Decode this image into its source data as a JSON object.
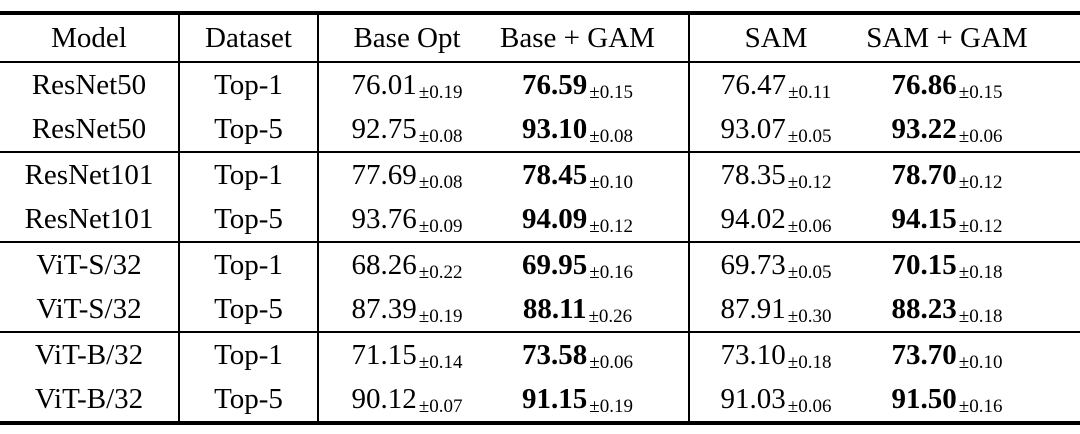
{
  "page": {
    "background": "#ffffff",
    "text_color": "#000000"
  },
  "table": {
    "headers": [
      "Model",
      "Dataset",
      "Base Opt",
      "Base + GAM",
      "SAM",
      "SAM + GAM"
    ],
    "groups": [
      {
        "rows": [
          {
            "model": "ResNet50",
            "dataset": "Top-1",
            "values": [
              {
                "v": "76.01",
                "pm": "±0.19"
              },
              {
                "v": "76.59",
                "pm": "±0.15"
              },
              {
                "v": "76.47",
                "pm": "±0.11"
              },
              {
                "v": "76.86",
                "pm": "±0.15"
              }
            ]
          },
          {
            "model": "ResNet50",
            "dataset": "Top-5",
            "values": [
              {
                "v": "92.75",
                "pm": "±0.08"
              },
              {
                "v": "93.10",
                "pm": "±0.08"
              },
              {
                "v": "93.07",
                "pm": "±0.05"
              },
              {
                "v": "93.22",
                "pm": "±0.06"
              }
            ]
          }
        ]
      },
      {
        "rows": [
          {
            "model": "ResNet101",
            "dataset": "Top-1",
            "values": [
              {
                "v": "77.69",
                "pm": "±0.08"
              },
              {
                "v": "78.45",
                "pm": "±0.10"
              },
              {
                "v": "78.35",
                "pm": "±0.12"
              },
              {
                "v": "78.70",
                "pm": "±0.12"
              }
            ]
          },
          {
            "model": "ResNet101",
            "dataset": "Top-5",
            "values": [
              {
                "v": "93.76",
                "pm": "±0.09"
              },
              {
                "v": "94.09",
                "pm": "±0.12"
              },
              {
                "v": "94.02",
                "pm": "±0.06"
              },
              {
                "v": "94.15",
                "pm": "±0.12"
              }
            ]
          }
        ]
      },
      {
        "rows": [
          {
            "model": "ViT-S/32",
            "dataset": "Top-1",
            "values": [
              {
                "v": "68.26",
                "pm": "±0.22"
              },
              {
                "v": "69.95",
                "pm": "±0.16"
              },
              {
                "v": "69.73",
                "pm": "±0.05"
              },
              {
                "v": "70.15",
                "pm": "±0.18"
              }
            ]
          },
          {
            "model": "ViT-S/32",
            "dataset": "Top-5",
            "values": [
              {
                "v": "87.39",
                "pm": "±0.19"
              },
              {
                "v": "88.11",
                "pm": "±0.26"
              },
              {
                "v": "87.91",
                "pm": "±0.30"
              },
              {
                "v": "88.23",
                "pm": "±0.18"
              }
            ]
          }
        ]
      },
      {
        "rows": [
          {
            "model": "ViT-B/32",
            "dataset": "Top-1",
            "values": [
              {
                "v": "71.15",
                "pm": "±0.14"
              },
              {
                "v": "73.58",
                "pm": "±0.06"
              },
              {
                "v": "73.10",
                "pm": "±0.18"
              },
              {
                "v": "73.70",
                "pm": "±0.10"
              }
            ]
          },
          {
            "model": "ViT-B/32",
            "dataset": "Top-5",
            "values": [
              {
                "v": "90.12",
                "pm": "±0.07"
              },
              {
                "v": "91.15",
                "pm": "±0.19"
              },
              {
                "v": "91.03",
                "pm": "±0.06"
              },
              {
                "v": "91.50",
                "pm": "±0.16"
              }
            ]
          }
        ]
      }
    ]
  }
}
